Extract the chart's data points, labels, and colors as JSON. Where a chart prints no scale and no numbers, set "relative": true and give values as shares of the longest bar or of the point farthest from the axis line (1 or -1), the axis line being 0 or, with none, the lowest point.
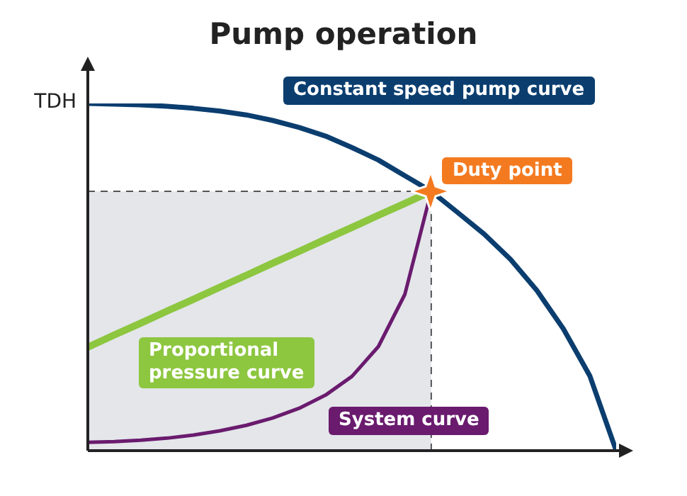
{
  "chart_data": {
    "type": "line",
    "title": "Pump operation",
    "relative": true,
    "marker": "none",
    "line_style": "solid",
    "categories": [
      null,
      null,
      null,
      null,
      null,
      null,
      null,
      null,
      null,
      null,
      null,
      null,
      null,
      null,
      null,
      null,
      null,
      null,
      null,
      null,
      null
    ],
    "series": [
      {
        "name": "Constant speed pump curve",
        "color": "#0b3e6f",
        "values": [
          1,
          0.998,
          0.996,
          0.992,
          0.986,
          0.978,
          0.967,
          0.951,
          0.931,
          0.906,
          0.873,
          0.837,
          0.792,
          0.747,
          0.686,
          0.624,
          0.551,
          0.461,
          0.351,
          0.216,
          0
        ]
      },
      {
        "name": "Proportional pressure curve",
        "color": "#8dc63f",
        "values": [
          0.298,
          0.333,
          0.367,
          0.402,
          0.436,
          0.471,
          0.505,
          0.54,
          0.574,
          0.609,
          0.643,
          0.678,
          0.712,
          0.747,
          null,
          null,
          null,
          null,
          null,
          null,
          null
        ]
      },
      {
        "name": "System curve",
        "color": "#6a1b6e",
        "values": [
          0.024,
          0.026,
          0.03,
          0.036,
          0.045,
          0.057,
          0.073,
          0.094,
          0.122,
          0.16,
          0.214,
          0.3,
          0.45,
          0.747,
          null,
          null,
          null,
          null,
          null,
          null,
          null
        ]
      }
    ],
    "ref_lines": [
      {
        "axis": "y",
        "value": 0.747,
        "label": null,
        "line_style": "dashed",
        "color": "#555555"
      }
    ],
    "bands": [
      {
        "axis": "y",
        "from": 0,
        "to": 0.747,
        "label": null,
        "color": "#e4e6ea"
      }
    ],
    "annotations": [
      "TDH",
      "Duty point"
    ]
  }
}
